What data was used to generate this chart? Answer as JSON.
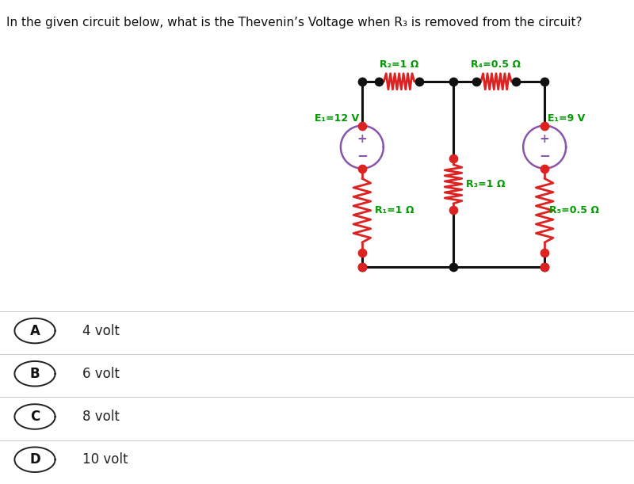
{
  "title": "In the given circuit below, what is the Thevenin’s Voltage when R₃ is removed from the circuit?",
  "circuit_color": "#dd2222",
  "wire_color": "#111111",
  "label_color": "#009900",
  "source_color": "#8855aa",
  "bg_color": "#ffffff",
  "gray_box_color": "#eeeeee",
  "answer_bg": "#f7f7f7",
  "answer_border": "#cccccc",
  "options": [
    {
      "label": "A",
      "text": "4 volt"
    },
    {
      "label": "B",
      "text": "6 volt"
    },
    {
      "label": "C",
      "text": "8 volt"
    },
    {
      "label": "D",
      "text": "10 volt"
    }
  ],
  "component_labels": {
    "R2": "R₂=1 Ω",
    "R4": "R₄=0.5 Ω",
    "R1": "R₁=1 Ω",
    "R3": "R₃=1 Ω",
    "R5": "R₅=0.5 Ω",
    "E1_left": "E₁=12 V",
    "E1_right": "E₁=9 V"
  }
}
